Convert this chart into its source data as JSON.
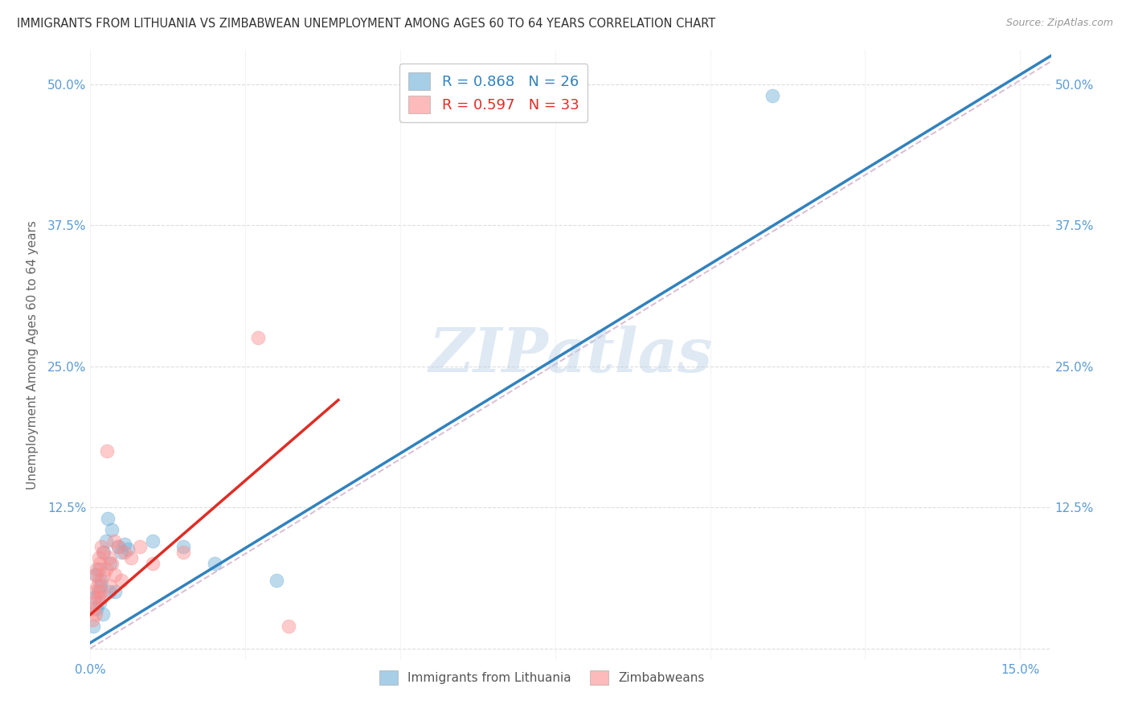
{
  "title": "IMMIGRANTS FROM LITHUANIA VS ZIMBABWEAN UNEMPLOYMENT AMONG AGES 60 TO 64 YEARS CORRELATION CHART",
  "source": "Source: ZipAtlas.com",
  "xlabel_ticks": [
    "0.0%",
    "",
    "",
    "",
    "",
    "",
    "15.0%"
  ],
  "xlabel_vals": [
    0.0,
    2.5,
    5.0,
    7.5,
    10.0,
    12.5,
    15.0
  ],
  "ylabel_ticks_left": [
    "",
    "12.5%",
    "25.0%",
    "37.5%",
    "50.0%"
  ],
  "ylabel_ticks_right": [
    "",
    "12.5%",
    "25.0%",
    "37.5%",
    "50.0%"
  ],
  "ylabel_vals": [
    0.0,
    12.5,
    25.0,
    37.5,
    50.0
  ],
  "xlim": [
    0.0,
    15.5
  ],
  "ylim": [
    -1.0,
    53.0
  ],
  "ylabel": "Unemployment Among Ages 60 to 64 years",
  "legend_blue_r": "R = 0.868",
  "legend_blue_n": "N = 26",
  "legend_pink_r": "R = 0.597",
  "legend_pink_n": "N = 33",
  "legend_label_blue": "Immigrants from Lithuania",
  "legend_label_pink": "Zimbabweans",
  "watermark": "ZIPatlas",
  "blue_color": "#92c5de",
  "pink_color": "#f4a582",
  "blue_scatter_color": "#6baed6",
  "pink_scatter_color": "#fc8d8d",
  "blue_line_color": "#3182bd",
  "pink_line_color": "#de2d26",
  "diag_line_color": "#d4b0c8",
  "blue_scatter": [
    [
      0.05,
      2.0
    ],
    [
      0.07,
      4.5
    ],
    [
      0.09,
      6.5
    ],
    [
      0.1,
      3.5
    ],
    [
      0.12,
      5.0
    ],
    [
      0.13,
      7.0
    ],
    [
      0.15,
      4.0
    ],
    [
      0.16,
      5.5
    ],
    [
      0.18,
      6.0
    ],
    [
      0.2,
      3.0
    ],
    [
      0.22,
      8.5
    ],
    [
      0.25,
      9.5
    ],
    [
      0.28,
      11.5
    ],
    [
      0.3,
      5.0
    ],
    [
      0.32,
      7.5
    ],
    [
      0.35,
      10.5
    ],
    [
      0.4,
      5.0
    ],
    [
      0.45,
      9.0
    ],
    [
      0.5,
      8.5
    ],
    [
      0.55,
      9.2
    ],
    [
      0.6,
      8.8
    ],
    [
      1.0,
      9.5
    ],
    [
      1.5,
      9.0
    ],
    [
      2.0,
      7.5
    ],
    [
      3.0,
      6.0
    ],
    [
      11.0,
      49.0
    ]
  ],
  "pink_scatter": [
    [
      0.03,
      2.5
    ],
    [
      0.05,
      3.5
    ],
    [
      0.06,
      5.0
    ],
    [
      0.07,
      4.0
    ],
    [
      0.08,
      6.5
    ],
    [
      0.09,
      3.0
    ],
    [
      0.1,
      7.0
    ],
    [
      0.11,
      5.5
    ],
    [
      0.12,
      4.5
    ],
    [
      0.13,
      8.0
    ],
    [
      0.14,
      6.0
    ],
    [
      0.15,
      7.5
    ],
    [
      0.16,
      5.0
    ],
    [
      0.17,
      9.0
    ],
    [
      0.18,
      4.5
    ],
    [
      0.2,
      8.5
    ],
    [
      0.22,
      6.5
    ],
    [
      0.25,
      7.0
    ],
    [
      0.27,
      17.5
    ],
    [
      0.3,
      8.0
    ],
    [
      0.32,
      5.5
    ],
    [
      0.35,
      7.5
    ],
    [
      0.38,
      9.5
    ],
    [
      0.4,
      6.5
    ],
    [
      0.45,
      9.0
    ],
    [
      0.5,
      6.0
    ],
    [
      0.55,
      8.5
    ],
    [
      0.65,
      8.0
    ],
    [
      0.8,
      9.0
    ],
    [
      1.0,
      7.5
    ],
    [
      1.5,
      8.5
    ],
    [
      2.7,
      27.5
    ],
    [
      3.2,
      2.0
    ]
  ],
  "blue_trendline_x": [
    0.0,
    15.5
  ],
  "blue_trendline_y": [
    0.5,
    52.5
  ],
  "pink_trendline_x": [
    0.0,
    4.0
  ],
  "pink_trendline_y": [
    3.0,
    22.0
  ],
  "diag_line_x": [
    0.0,
    15.5
  ],
  "diag_line_y": [
    0.0,
    52.0
  ]
}
